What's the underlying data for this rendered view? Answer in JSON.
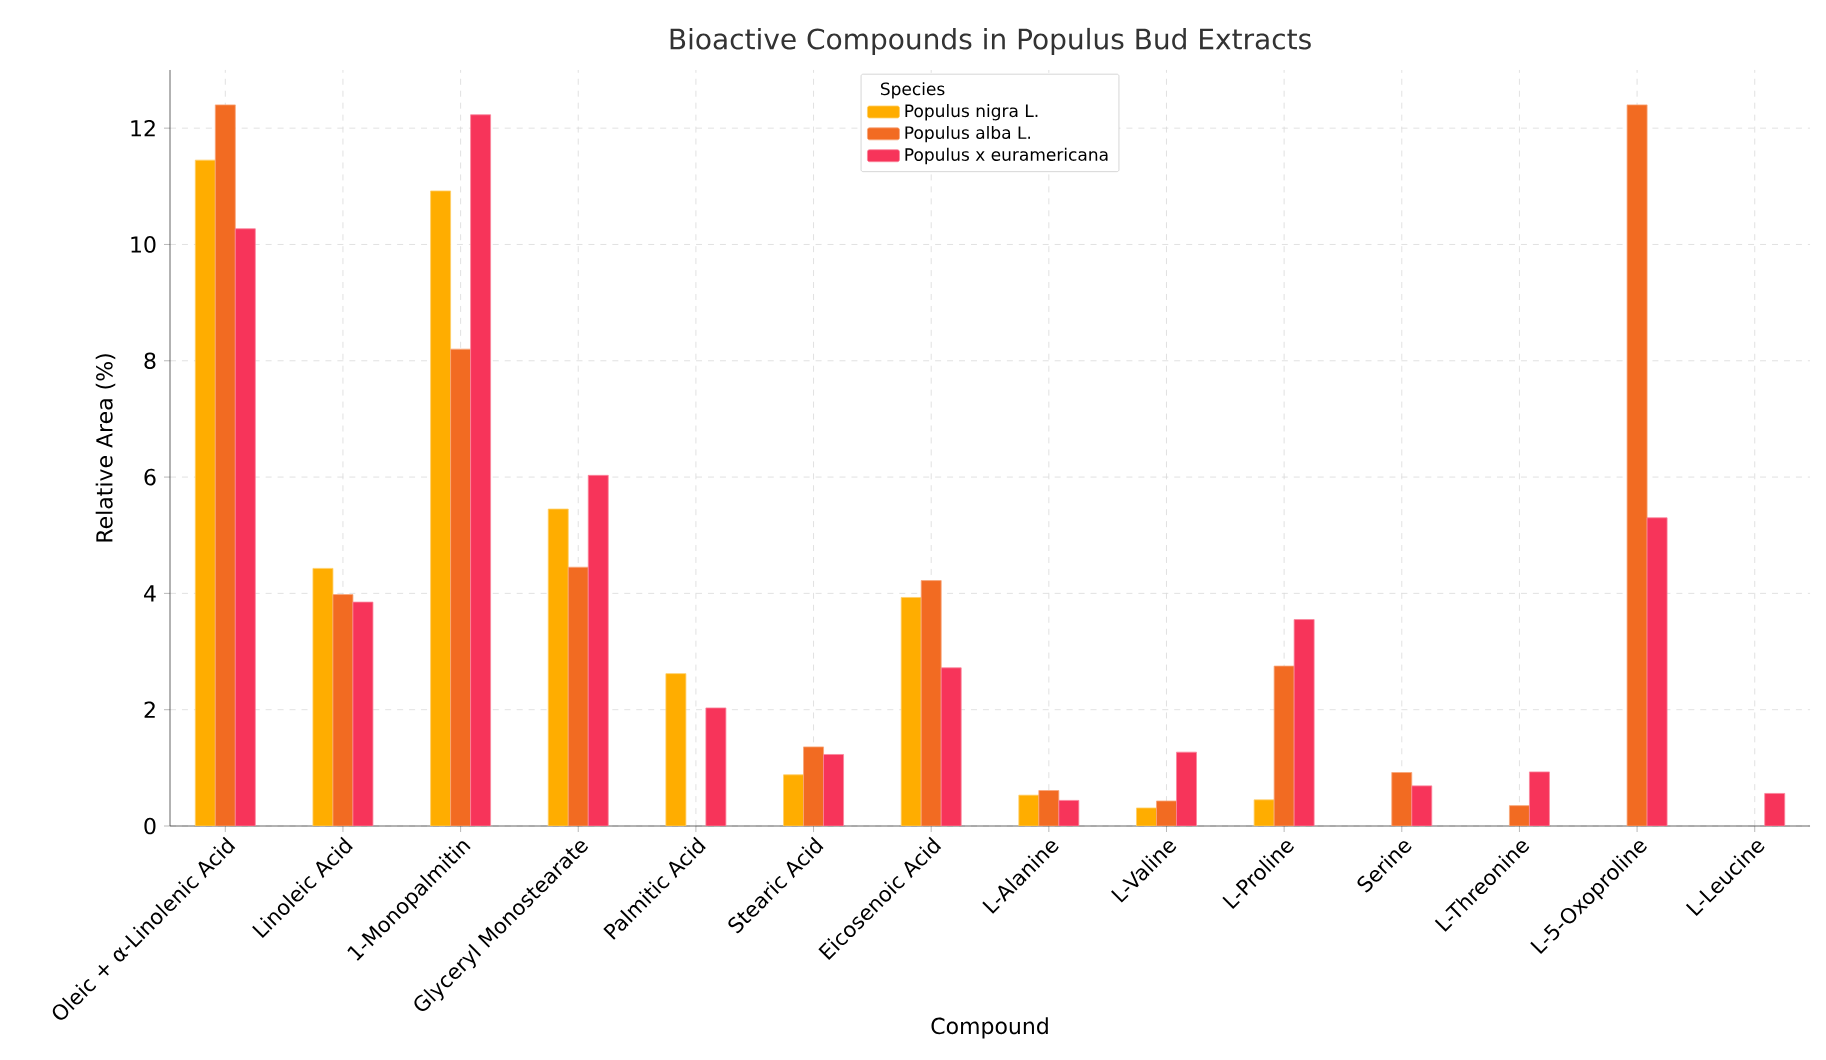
{
  "chart_data": {
    "type": "bar",
    "title": "Bioactive Compounds in Populus Bud Extracts",
    "xlabel": "Compound",
    "ylabel": "Relative Area (%)",
    "legend_title": "Species",
    "categories": [
      "Oleic + α-Linolenic Acid",
      "Linoleic Acid",
      "1-Monopalmitin",
      "Glyceryl Monostearate",
      "Palmitic Acid",
      "Stearic Acid",
      "Eicosenoic Acid",
      "L-Alanine",
      "L-Valine",
      "L-Proline",
      "Serine",
      "L-Threonine",
      "L-5-Oxoproline",
      "L-Leucine"
    ],
    "series": [
      {
        "name": "Populus nigra L.",
        "color": "#ffad00",
        "values": [
          11.45,
          4.43,
          10.92,
          5.45,
          2.62,
          0.88,
          3.93,
          0.53,
          0.31,
          0.45,
          null,
          null,
          null,
          null
        ]
      },
      {
        "name": "Populus alba L.",
        "color": "#f26b22",
        "values": [
          12.4,
          3.98,
          8.2,
          4.45,
          null,
          1.36,
          4.22,
          0.61,
          0.43,
          2.75,
          0.92,
          0.35,
          12.4,
          null
        ]
      },
      {
        "name": "Populus x euramericana",
        "color": "#f7345a",
        "values": [
          10.27,
          3.85,
          12.23,
          6.03,
          2.03,
          1.23,
          2.72,
          0.44,
          1.27,
          3.55,
          0.69,
          0.93,
          5.3,
          0.56
        ]
      }
    ],
    "ylim": [
      0,
      13
    ],
    "yticks": [
      0,
      2,
      4,
      6,
      8,
      10,
      12
    ],
    "grid": true,
    "legend": "top"
  }
}
